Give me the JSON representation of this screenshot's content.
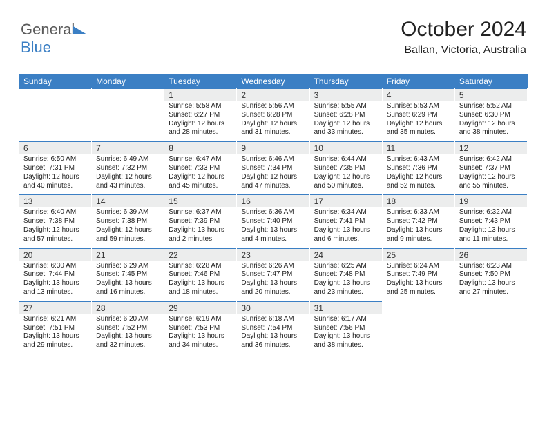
{
  "logo": {
    "part1": "General",
    "part2": "Blue"
  },
  "header": {
    "title": "October 2024",
    "location": "Ballan, Victoria, Australia"
  },
  "colors": {
    "brand": "#3b7fc4",
    "header_text": "#ffffff",
    "daynum_bg": "#eceded",
    "rule": "#3b7fc4",
    "text": "#222222"
  },
  "calendar": {
    "day_names": [
      "Sunday",
      "Monday",
      "Tuesday",
      "Wednesday",
      "Thursday",
      "Friday",
      "Saturday"
    ],
    "leading_blanks": 2,
    "days": [
      {
        "n": 1,
        "sunrise": "5:58 AM",
        "sunset": "6:27 PM",
        "daylight": "12 hours and 28 minutes."
      },
      {
        "n": 2,
        "sunrise": "5:56 AM",
        "sunset": "6:28 PM",
        "daylight": "12 hours and 31 minutes."
      },
      {
        "n": 3,
        "sunrise": "5:55 AM",
        "sunset": "6:28 PM",
        "daylight": "12 hours and 33 minutes."
      },
      {
        "n": 4,
        "sunrise": "5:53 AM",
        "sunset": "6:29 PM",
        "daylight": "12 hours and 35 minutes."
      },
      {
        "n": 5,
        "sunrise": "5:52 AM",
        "sunset": "6:30 PM",
        "daylight": "12 hours and 38 minutes."
      },
      {
        "n": 6,
        "sunrise": "6:50 AM",
        "sunset": "7:31 PM",
        "daylight": "12 hours and 40 minutes."
      },
      {
        "n": 7,
        "sunrise": "6:49 AM",
        "sunset": "7:32 PM",
        "daylight": "12 hours and 43 minutes."
      },
      {
        "n": 8,
        "sunrise": "6:47 AM",
        "sunset": "7:33 PM",
        "daylight": "12 hours and 45 minutes."
      },
      {
        "n": 9,
        "sunrise": "6:46 AM",
        "sunset": "7:34 PM",
        "daylight": "12 hours and 47 minutes."
      },
      {
        "n": 10,
        "sunrise": "6:44 AM",
        "sunset": "7:35 PM",
        "daylight": "12 hours and 50 minutes."
      },
      {
        "n": 11,
        "sunrise": "6:43 AM",
        "sunset": "7:36 PM",
        "daylight": "12 hours and 52 minutes."
      },
      {
        "n": 12,
        "sunrise": "6:42 AM",
        "sunset": "7:37 PM",
        "daylight": "12 hours and 55 minutes."
      },
      {
        "n": 13,
        "sunrise": "6:40 AM",
        "sunset": "7:38 PM",
        "daylight": "12 hours and 57 minutes."
      },
      {
        "n": 14,
        "sunrise": "6:39 AM",
        "sunset": "7:38 PM",
        "daylight": "12 hours and 59 minutes."
      },
      {
        "n": 15,
        "sunrise": "6:37 AM",
        "sunset": "7:39 PM",
        "daylight": "13 hours and 2 minutes."
      },
      {
        "n": 16,
        "sunrise": "6:36 AM",
        "sunset": "7:40 PM",
        "daylight": "13 hours and 4 minutes."
      },
      {
        "n": 17,
        "sunrise": "6:34 AM",
        "sunset": "7:41 PM",
        "daylight": "13 hours and 6 minutes."
      },
      {
        "n": 18,
        "sunrise": "6:33 AM",
        "sunset": "7:42 PM",
        "daylight": "13 hours and 9 minutes."
      },
      {
        "n": 19,
        "sunrise": "6:32 AM",
        "sunset": "7:43 PM",
        "daylight": "13 hours and 11 minutes."
      },
      {
        "n": 20,
        "sunrise": "6:30 AM",
        "sunset": "7:44 PM",
        "daylight": "13 hours and 13 minutes."
      },
      {
        "n": 21,
        "sunrise": "6:29 AM",
        "sunset": "7:45 PM",
        "daylight": "13 hours and 16 minutes."
      },
      {
        "n": 22,
        "sunrise": "6:28 AM",
        "sunset": "7:46 PM",
        "daylight": "13 hours and 18 minutes."
      },
      {
        "n": 23,
        "sunrise": "6:26 AM",
        "sunset": "7:47 PM",
        "daylight": "13 hours and 20 minutes."
      },
      {
        "n": 24,
        "sunrise": "6:25 AM",
        "sunset": "7:48 PM",
        "daylight": "13 hours and 23 minutes."
      },
      {
        "n": 25,
        "sunrise": "6:24 AM",
        "sunset": "7:49 PM",
        "daylight": "13 hours and 25 minutes."
      },
      {
        "n": 26,
        "sunrise": "6:23 AM",
        "sunset": "7:50 PM",
        "daylight": "13 hours and 27 minutes."
      },
      {
        "n": 27,
        "sunrise": "6:21 AM",
        "sunset": "7:51 PM",
        "daylight": "13 hours and 29 minutes."
      },
      {
        "n": 28,
        "sunrise": "6:20 AM",
        "sunset": "7:52 PM",
        "daylight": "13 hours and 32 minutes."
      },
      {
        "n": 29,
        "sunrise": "6:19 AM",
        "sunset": "7:53 PM",
        "daylight": "13 hours and 34 minutes."
      },
      {
        "n": 30,
        "sunrise": "6:18 AM",
        "sunset": "7:54 PM",
        "daylight": "13 hours and 36 minutes."
      },
      {
        "n": 31,
        "sunrise": "6:17 AM",
        "sunset": "7:56 PM",
        "daylight": "13 hours and 38 minutes."
      }
    ]
  }
}
